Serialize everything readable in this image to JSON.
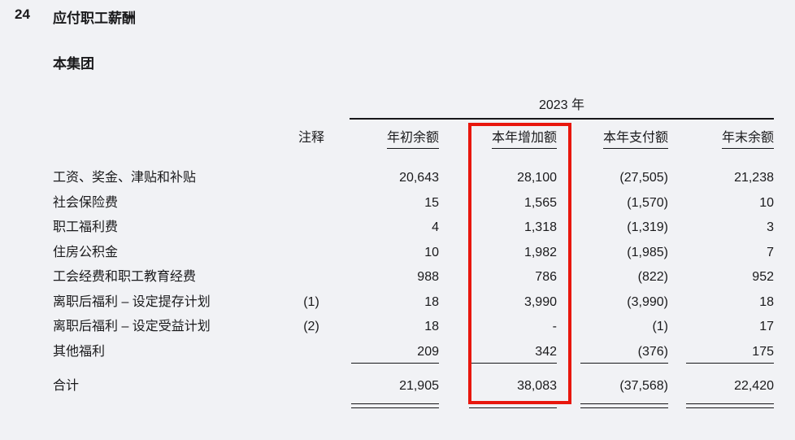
{
  "page": {
    "section_number": "24",
    "title": "应付职工薪酬",
    "subtitle": "本集团",
    "year_header": "2023 年"
  },
  "table": {
    "columns": [
      "注释",
      "年初余额",
      "本年增加额",
      "本年支付额",
      "年末余额"
    ],
    "rows": [
      {
        "label": "工资、奖金、津贴和补贴",
        "note": "",
        "opening": "20,643",
        "additions": "28,100",
        "payments": "(27,505)",
        "closing": "21,238"
      },
      {
        "label": "社会保险费",
        "note": "",
        "opening": "15",
        "additions": "1,565",
        "payments": "(1,570)",
        "closing": "10"
      },
      {
        "label": "职工福利费",
        "note": "",
        "opening": "4",
        "additions": "1,318",
        "payments": "(1,319)",
        "closing": "3"
      },
      {
        "label": "住房公积金",
        "note": "",
        "opening": "10",
        "additions": "1,982",
        "payments": "(1,985)",
        "closing": "7"
      },
      {
        "label": "工会经费和职工教育经费",
        "note": "",
        "opening": "988",
        "additions": "786",
        "payments": "(822)",
        "closing": "952"
      },
      {
        "label": "离职后福利 – 设定提存计划",
        "note": "(1)",
        "opening": "18",
        "additions": "3,990",
        "payments": "(3,990)",
        "closing": "18"
      },
      {
        "label": "离职后福利 – 设定受益计划",
        "note": "(2)",
        "opening": "18",
        "additions": "-",
        "payments": "(1)",
        "closing": "17"
      },
      {
        "label": "其他福利",
        "note": "",
        "opening": "209",
        "additions": "342",
        "payments": "(376)",
        "closing": "175"
      }
    ],
    "total": {
      "label": "合计",
      "opening": "21,905",
      "additions": "38,083",
      "payments": "(37,568)",
      "closing": "22,420"
    }
  },
  "highlight": {
    "color": "#e8170d",
    "highlighted_column": "本年增加额"
  }
}
